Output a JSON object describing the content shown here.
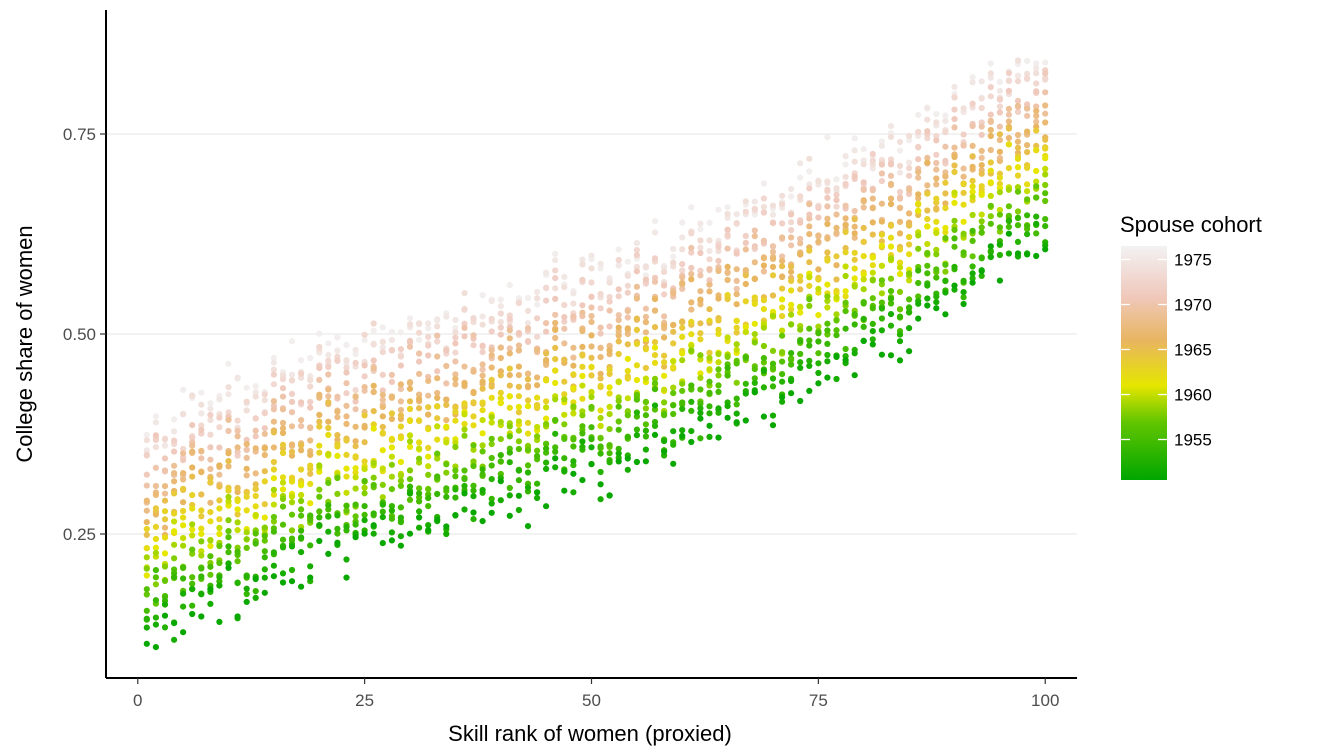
{
  "chart_data": {
    "type": "scatter",
    "xlabel": "Skill rank of women (proxied)",
    "ylabel": "College share of women",
    "xlim": [
      -3.5,
      103.5
    ],
    "ylim": [
      0.07,
      0.905
    ],
    "x_ticks": [
      0,
      25,
      50,
      75,
      100
    ],
    "x_tick_labels": [
      "0",
      "25",
      "50",
      "75",
      "100"
    ],
    "y_ticks": [
      0.25,
      0.5,
      0.75
    ],
    "y_tick_labels": [
      "0.25",
      "0.50",
      "0.75"
    ],
    "grid": "horizontal major gridlines only",
    "legend": {
      "title": "Spouse cohort",
      "placement": "right",
      "range": [
        1950.5,
        1976.5
      ],
      "ticks": [
        1975,
        1970,
        1965,
        1960,
        1955
      ],
      "tick_labels": [
        "1975",
        "1970",
        "1965",
        "1960",
        "1955"
      ],
      "gradient_stops": [
        {
          "cohort": 1950.5,
          "color": "#00a600"
        },
        {
          "cohort": 1957,
          "color": "#63c600"
        },
        {
          "cohort": 1961,
          "color": "#e6e600"
        },
        {
          "cohort": 1966,
          "color": "#e8b560"
        },
        {
          "cohort": 1971,
          "color": "#f0c9bd"
        },
        {
          "cohort": 1976.5,
          "color": "#f2f2f2"
        }
      ]
    },
    "series_model": {
      "x_range": [
        1,
        100
      ],
      "cohort_range": [
        1951,
        1976
      ],
      "trend": "College share rises with skill rank for every spouse cohort; later cohorts sit higher",
      "approx_center_by_rank_oldest_cohort": [
        [
          1,
          0.12
        ],
        [
          25,
          0.24
        ],
        [
          50,
          0.32
        ],
        [
          75,
          0.44
        ],
        [
          100,
          0.62
        ]
      ],
      "approx_center_by_rank_newest_cohort": [
        [
          1,
          0.38
        ],
        [
          25,
          0.5
        ],
        [
          50,
          0.58
        ],
        [
          75,
          0.7
        ],
        [
          100,
          0.85
        ]
      ]
    },
    "colors": {
      "point_oldest": "#00a600",
      "point_newest": "#f2f2f2",
      "axis_line": "#000000",
      "grid_line": "#ebebeb"
    }
  }
}
